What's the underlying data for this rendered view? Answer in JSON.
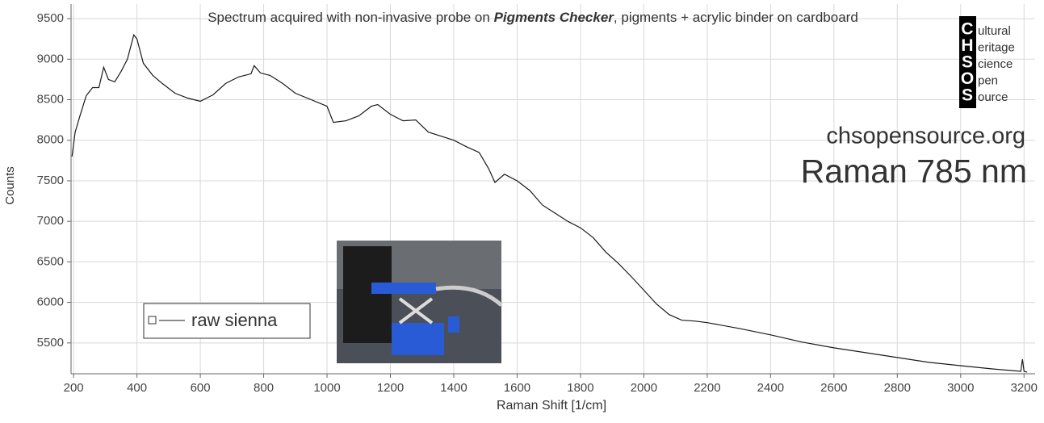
{
  "chart_data": {
    "type": "line",
    "title": [
      "Spectrum acquired with non-invasive probe on ",
      "Pigments Checker",
      ", pigments + acrylic binder on cardboard"
    ],
    "x_label": "Raman Shift [1/cm]",
    "y_label": "Counts",
    "logo": {
      "letters": [
        "C",
        "H",
        "S",
        "O",
        "S"
      ],
      "words": [
        "ultural",
        "eritage",
        "cience",
        "pen",
        "ource"
      ]
    },
    "website": "chsopensource.org",
    "subtitle": "Raman 785 nm",
    "xlim": [
      192,
      3235
    ],
    "ylim": [
      5120,
      9680
    ],
    "xticks": [
      200,
      400,
      600,
      800,
      1000,
      1200,
      1400,
      1600,
      1800,
      2000,
      2200,
      2400,
      2600,
      2800,
      3000,
      3200
    ],
    "yticks": [
      5500,
      6000,
      6500,
      7000,
      7500,
      8000,
      8500,
      9000,
      9500
    ],
    "grid": true,
    "legend": "lower left",
    "x": [
      195,
      205,
      220,
      240,
      260,
      280,
      295,
      310,
      330,
      350,
      370,
      390,
      400,
      420,
      450,
      480,
      520,
      560,
      600,
      640,
      680,
      720,
      760,
      770,
      790,
      820,
      860,
      900,
      950,
      1000,
      1020,
      1060,
      1100,
      1140,
      1160,
      1200,
      1240,
      1280,
      1320,
      1360,
      1400,
      1440,
      1480,
      1510,
      1530,
      1560,
      1600,
      1640,
      1680,
      1720,
      1760,
      1800,
      1840,
      1880,
      1920,
      1960,
      2000,
      2040,
      2080,
      2120,
      2160,
      2200,
      2300,
      2400,
      2500,
      2600,
      2700,
      2800,
      2900,
      3000,
      3100,
      3190,
      3195,
      3200,
      3210
    ],
    "series": [
      {
        "name": "raw sienna",
        "color": "#1a1a1a",
        "values": [
          7800,
          8100,
          8300,
          8550,
          8650,
          8650,
          8900,
          8750,
          8720,
          8850,
          9000,
          9300,
          9250,
          8950,
          8800,
          8700,
          8580,
          8520,
          8480,
          8560,
          8700,
          8780,
          8820,
          8920,
          8830,
          8800,
          8700,
          8580,
          8500,
          8420,
          8220,
          8240,
          8300,
          8420,
          8440,
          8320,
          8240,
          8250,
          8100,
          8050,
          8000,
          7920,
          7850,
          7650,
          7480,
          7580,
          7500,
          7380,
          7200,
          7100,
          7000,
          6920,
          6800,
          6620,
          6480,
          6320,
          6150,
          5980,
          5850,
          5780,
          5770,
          5750,
          5680,
          5600,
          5510,
          5440,
          5380,
          5320,
          5260,
          5220,
          5180,
          5150,
          5300,
          5150,
          5140
        ]
      }
    ]
  }
}
